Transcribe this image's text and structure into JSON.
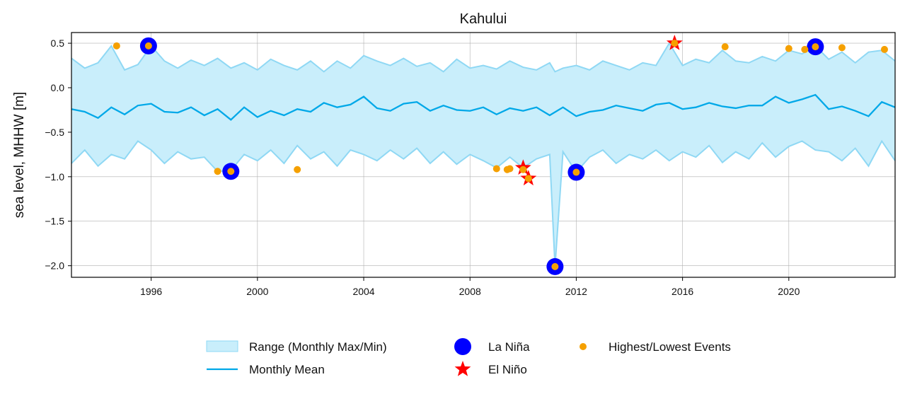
{
  "chart_data": {
    "type": "line",
    "title": "Kahului",
    "ylabel": "sea level, MHHW [m]",
    "xlabel": "",
    "xlim": [
      1993.0,
      2024.0
    ],
    "ylim": [
      -2.13,
      0.62
    ],
    "grid": true,
    "x_ticks": [
      1996,
      2000,
      2004,
      2008,
      2012,
      2016,
      2020
    ],
    "x_tick_labels": [
      "1996",
      "2000",
      "2004",
      "2008",
      "2012",
      "2016",
      "2020"
    ],
    "y_ticks": [
      0.5,
      0.0,
      -0.5,
      -1.0,
      -1.5,
      -2.0
    ],
    "y_tick_labels": [
      "0.5",
      "0.0",
      "−0.5",
      "−1.0",
      "−1.5",
      "−2.0"
    ],
    "legend_position": "bottom-center",
    "legend": [
      {
        "label": "Range (Monthly Max/Min)",
        "kind": "band"
      },
      {
        "label": "Monthly Mean",
        "kind": "line"
      },
      {
        "label": "La Niña",
        "kind": "circle"
      },
      {
        "label": "El Niño",
        "kind": "star"
      },
      {
        "label": "Highest/Lowest Events",
        "kind": "dot"
      }
    ],
    "colors": {
      "range_fill": "#c9eefb",
      "range_edge": "#8fd8f4",
      "mean_line": "#00a8e8",
      "la_nina": "#0000ff",
      "el_nino": "#ff0000",
      "events": "#f5a000",
      "grid": "#b0b0b0"
    },
    "series": [
      {
        "name": "Monthly Mean",
        "x": [
          1993.0,
          1993.5,
          1994.0,
          1994.5,
          1995.0,
          1995.5,
          1996.0,
          1996.5,
          1997.0,
          1997.5,
          1998.0,
          1998.5,
          1999.0,
          1999.5,
          2000.0,
          2000.5,
          2001.0,
          2001.5,
          2002.0,
          2002.5,
          2003.0,
          2003.5,
          2004.0,
          2004.5,
          2005.0,
          2005.5,
          2006.0,
          2006.5,
          2007.0,
          2007.5,
          2008.0,
          2008.5,
          2009.0,
          2009.5,
          2010.0,
          2010.5,
          2011.0,
          2011.5,
          2012.0,
          2012.5,
          2013.0,
          2013.5,
          2014.0,
          2014.5,
          2015.0,
          2015.5,
          2016.0,
          2016.5,
          2017.0,
          2017.5,
          2018.0,
          2018.5,
          2019.0,
          2019.5,
          2020.0,
          2020.5,
          2021.0,
          2021.5,
          2022.0,
          2022.5,
          2023.0,
          2023.5,
          2024.0
        ],
        "values": [
          -0.24,
          -0.27,
          -0.34,
          -0.22,
          -0.3,
          -0.2,
          -0.18,
          -0.27,
          -0.28,
          -0.22,
          -0.31,
          -0.24,
          -0.36,
          -0.22,
          -0.33,
          -0.26,
          -0.31,
          -0.24,
          -0.27,
          -0.17,
          -0.22,
          -0.19,
          -0.1,
          -0.23,
          -0.26,
          -0.18,
          -0.16,
          -0.26,
          -0.2,
          -0.25,
          -0.26,
          -0.22,
          -0.3,
          -0.23,
          -0.26,
          -0.22,
          -0.31,
          -0.22,
          -0.32,
          -0.27,
          -0.25,
          -0.2,
          -0.23,
          -0.26,
          -0.19,
          -0.17,
          -0.24,
          -0.22,
          -0.17,
          -0.21,
          -0.23,
          -0.2,
          -0.2,
          -0.1,
          -0.17,
          -0.13,
          -0.08,
          -0.24,
          -0.21,
          -0.26,
          -0.32,
          -0.16,
          -0.22
        ]
      },
      {
        "name": "Range (Monthly Max/Min)",
        "x": [
          1993.0,
          1993.5,
          1994.0,
          1994.5,
          1995.0,
          1995.5,
          1996.0,
          1996.5,
          1997.0,
          1997.5,
          1998.0,
          1998.5,
          1999.0,
          1999.5,
          2000.0,
          2000.5,
          2001.0,
          2001.5,
          2002.0,
          2002.5,
          2003.0,
          2003.5,
          2004.0,
          2004.5,
          2005.0,
          2005.5,
          2006.0,
          2006.5,
          2007.0,
          2007.5,
          2008.0,
          2008.5,
          2009.0,
          2009.5,
          2010.0,
          2010.5,
          2011.0,
          2011.2,
          2011.5,
          2012.0,
          2012.5,
          2013.0,
          2013.5,
          2014.0,
          2014.5,
          2015.0,
          2015.5,
          2016.0,
          2016.5,
          2017.0,
          2017.5,
          2018.0,
          2018.5,
          2019.0,
          2019.5,
          2020.0,
          2020.5,
          2021.0,
          2021.5,
          2022.0,
          2022.5,
          2023.0,
          2023.5,
          2024.0
        ],
        "upper": [
          0.33,
          0.22,
          0.28,
          0.47,
          0.2,
          0.26,
          0.47,
          0.3,
          0.22,
          0.31,
          0.25,
          0.33,
          0.22,
          0.28,
          0.2,
          0.32,
          0.25,
          0.2,
          0.3,
          0.18,
          0.3,
          0.22,
          0.36,
          0.3,
          0.25,
          0.33,
          0.24,
          0.28,
          0.18,
          0.32,
          0.22,
          0.25,
          0.21,
          0.3,
          0.23,
          0.2,
          0.28,
          0.18,
          0.22,
          0.25,
          0.2,
          0.3,
          0.25,
          0.2,
          0.28,
          0.25,
          0.5,
          0.25,
          0.32,
          0.28,
          0.42,
          0.3,
          0.28,
          0.35,
          0.3,
          0.42,
          0.38,
          0.47,
          0.32,
          0.4,
          0.28,
          0.4,
          0.42,
          0.3
        ],
        "lower": [
          -0.85,
          -0.7,
          -0.88,
          -0.75,
          -0.8,
          -0.6,
          -0.7,
          -0.85,
          -0.72,
          -0.8,
          -0.78,
          -0.94,
          -0.93,
          -0.75,
          -0.82,
          -0.7,
          -0.85,
          -0.65,
          -0.8,
          -0.72,
          -0.88,
          -0.7,
          -0.75,
          -0.82,
          -0.7,
          -0.8,
          -0.68,
          -0.85,
          -0.72,
          -0.86,
          -0.75,
          -0.82,
          -0.9,
          -0.78,
          -0.9,
          -0.8,
          -0.75,
          -2.01,
          -0.72,
          -0.95,
          -0.78,
          -0.7,
          -0.85,
          -0.75,
          -0.8,
          -0.7,
          -0.82,
          -0.72,
          -0.78,
          -0.65,
          -0.84,
          -0.72,
          -0.8,
          -0.62,
          -0.78,
          -0.66,
          -0.6,
          -0.7,
          -0.72,
          -0.82,
          -0.68,
          -0.88,
          -0.6,
          -0.82
        ]
      },
      {
        "name": "La Niña",
        "x": [
          1995.9,
          1999.0,
          2011.2,
          2012.0,
          2021.0
        ],
        "values": [
          0.47,
          -0.94,
          -2.01,
          -0.95,
          0.46
        ]
      },
      {
        "name": "El Niño",
        "x": [
          2010.0,
          2010.2,
          2015.7
        ],
        "values": [
          -0.9,
          -1.02,
          0.5
        ]
      },
      {
        "name": "Highest/Lowest Events",
        "x": [
          1994.7,
          1995.9,
          1998.5,
          1999.0,
          2001.5,
          2009.0,
          2009.4,
          2009.5,
          2010.0,
          2010.2,
          2011.2,
          2012.0,
          2015.7,
          2017.6,
          2020.0,
          2020.6,
          2021.0,
          2022.0,
          2023.6
        ],
        "values": [
          0.47,
          0.47,
          -0.94,
          -0.94,
          -0.92,
          -0.91,
          -0.92,
          -0.91,
          -0.92,
          -1.02,
          -2.01,
          -0.95,
          0.5,
          0.46,
          0.44,
          0.43,
          0.46,
          0.45,
          0.43
        ]
      }
    ]
  }
}
